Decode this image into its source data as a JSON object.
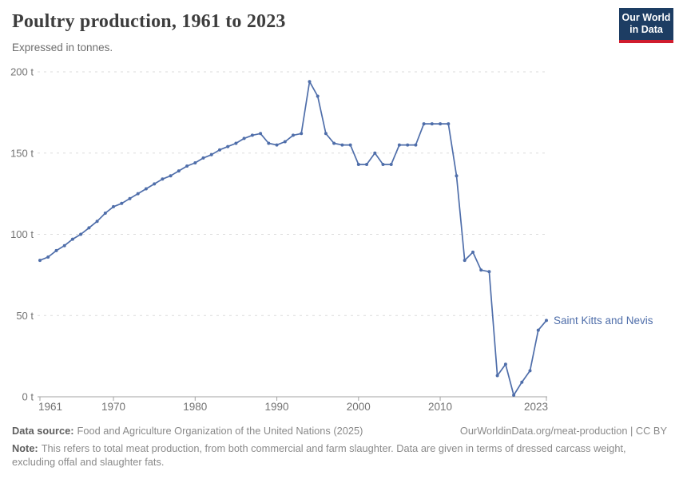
{
  "header": {
    "title": "Poultry production, 1961 to 2023",
    "subtitle": "Expressed in tonnes.",
    "logo_line1": "Our World",
    "logo_line2": "in Data"
  },
  "chart_data": {
    "type": "line",
    "title": "Poultry production, 1961 to 2023",
    "subtitle": "Expressed in tonnes.",
    "unit": "t",
    "xlim": [
      1961,
      2023
    ],
    "ylim": [
      0,
      200
    ],
    "grid": "horizontal-dashed",
    "legend_position": "end-of-line-label",
    "x_ticks": [
      {
        "value": 1961,
        "label": "1961"
      },
      {
        "value": 1970,
        "label": "1970"
      },
      {
        "value": 1980,
        "label": "1980"
      },
      {
        "value": 1990,
        "label": "1990"
      },
      {
        "value": 2000,
        "label": "2000"
      },
      {
        "value": 2010,
        "label": "2010"
      },
      {
        "value": 2023,
        "label": "2023"
      }
    ],
    "y_ticks": [
      {
        "value": 0,
        "label": "0 t"
      },
      {
        "value": 50,
        "label": "50 t"
      },
      {
        "value": 100,
        "label": "100 t"
      },
      {
        "value": 150,
        "label": "150 t"
      },
      {
        "value": 200,
        "label": "200 t"
      }
    ],
    "series": [
      {
        "name": "Saint Kitts and Nevis",
        "color": "#4f6eaa",
        "x": [
          1961,
          1962,
          1963,
          1964,
          1965,
          1966,
          1967,
          1968,
          1969,
          1970,
          1971,
          1972,
          1973,
          1974,
          1975,
          1976,
          1977,
          1978,
          1979,
          1980,
          1981,
          1982,
          1983,
          1984,
          1985,
          1986,
          1987,
          1988,
          1989,
          1990,
          1991,
          1992,
          1993,
          1994,
          1995,
          1996,
          1997,
          1998,
          1999,
          2000,
          2001,
          2002,
          2003,
          2004,
          2005,
          2006,
          2007,
          2008,
          2009,
          2010,
          2011,
          2012,
          2013,
          2014,
          2015,
          2016,
          2017,
          2018,
          2019,
          2020,
          2021,
          2022,
          2023
        ],
        "values": [
          84,
          86,
          90,
          93,
          97,
          100,
          104,
          108,
          113,
          117,
          119,
          122,
          125,
          128,
          131,
          134,
          136,
          139,
          142,
          144,
          147,
          149,
          152,
          154,
          156,
          159,
          161,
          162,
          156,
          155,
          157,
          161,
          162,
          194,
          185,
          162,
          156,
          155,
          155,
          143,
          143,
          150,
          143,
          143,
          155,
          155,
          155,
          168,
          168,
          168,
          168,
          136,
          84,
          89,
          78,
          77,
          13,
          20,
          1,
          9,
          16,
          41,
          47
        ]
      }
    ],
    "colors": {
      "line": "#4f6eaa",
      "grid": "#dbdbdb",
      "axis": "#a3a3a3",
      "tick_label": "#737373"
    }
  },
  "footer": {
    "source_label": "Data source:",
    "source_value": "Food and Agriculture Organization of the United Nations (2025)",
    "link": "OurWorldinData.org/meat-production | CC BY",
    "note_label": "Note:",
    "note_value": "This refers to total meat production, from both commercial and farm slaughter. Data are given in terms of dressed carcass weight, excluding offal and slaughter fats."
  }
}
